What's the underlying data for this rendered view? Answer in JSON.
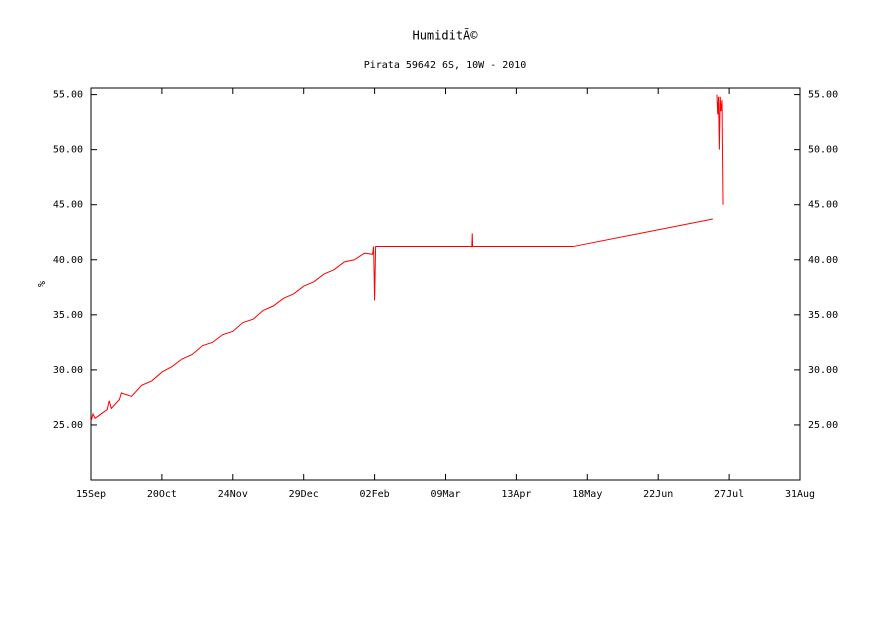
{
  "chart_data": {
    "type": "line",
    "title": "HumiditÃ©",
    "subtitle": "Pirata 59642 6S, 10W - 2010",
    "y_label": "%",
    "x": [
      0,
      1,
      2,
      8,
      9,
      10,
      14,
      15,
      20,
      25,
      30,
      35,
      40,
      45,
      50,
      55,
      60,
      65,
      70,
      75,
      80,
      85,
      90,
      95,
      100,
      105,
      110,
      115,
      120,
      125,
      130,
      135,
      139,
      139.5,
      140,
      140.5,
      188,
      188.2,
      188.4,
      238,
      307,
      308,
      309,
      309.4,
      309.8,
      310.2,
      310.6,
      311,
      311.5,
      312
    ],
    "series": [
      {
        "name": "Humidity",
        "color": "#ff0000",
        "values": [
          25.3,
          26.0,
          25.6,
          26.4,
          27.2,
          26.5,
          27.3,
          27.9,
          27.6,
          28.6,
          29.0,
          29.8,
          30.3,
          31.0,
          31.4,
          32.2,
          32.5,
          33.2,
          33.5,
          34.3,
          34.6,
          35.4,
          35.8,
          36.5,
          36.9,
          37.6,
          38.0,
          38.7,
          39.1,
          39.8,
          40.0,
          40.6,
          40.5,
          41.2,
          36.3,
          41.2,
          41.2,
          42.4,
          41.2,
          41.2,
          43.7,
          null,
          55.0,
          53.2,
          54.8,
          50.0,
          54.8,
          53.5,
          54.5,
          45.0
        ]
      }
    ],
    "xlim": [
      0,
      350
    ],
    "xticks": [
      {
        "value": 0,
        "label": "15Sep"
      },
      {
        "value": 35,
        "label": "20Oct"
      },
      {
        "value": 70,
        "label": "24Nov"
      },
      {
        "value": 105,
        "label": "29Dec"
      },
      {
        "value": 140,
        "label": "02Feb"
      },
      {
        "value": 175,
        "label": "09Mar"
      },
      {
        "value": 210,
        "label": "13Apr"
      },
      {
        "value": 245,
        "label": "18May"
      },
      {
        "value": 280,
        "label": "22Jun"
      },
      {
        "value": 315,
        "label": "27Jul"
      },
      {
        "value": 350,
        "label": "31Aug"
      }
    ],
    "ylim": [
      20,
      55.6
    ],
    "yticks": [
      {
        "value": 25,
        "label": "25.00"
      },
      {
        "value": 30,
        "label": "30.00"
      },
      {
        "value": 35,
        "label": "35.00"
      },
      {
        "value": 40,
        "label": "40.00"
      },
      {
        "value": 45,
        "label": "45.00"
      },
      {
        "value": 50,
        "label": "50.00"
      },
      {
        "value": 55,
        "label": "55.00"
      }
    ]
  }
}
